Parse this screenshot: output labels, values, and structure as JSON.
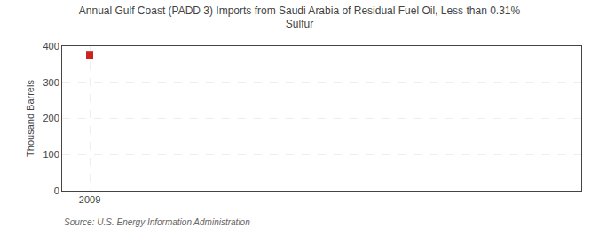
{
  "chart_data": {
    "type": "scatter",
    "title": "Annual Gulf Coast (PADD 3) Imports from Saudi Arabia of Residual Fuel Oil, Less than 0.31%\nSulfur",
    "ylabel": "Thousand Barrels",
    "annotations": [
      "Source: U.S. Energy Information Administration"
    ],
    "x": [
      2009
    ],
    "values": [
      375
    ],
    "color": "#cc2222",
    "marker": "square",
    "xlim": [
      2008.3,
      2021.5
    ],
    "xticks": [
      2009
    ],
    "ylim": [
      0,
      400
    ],
    "yticks": [
      0,
      100,
      200,
      300,
      400
    ],
    "grid": true
  }
}
